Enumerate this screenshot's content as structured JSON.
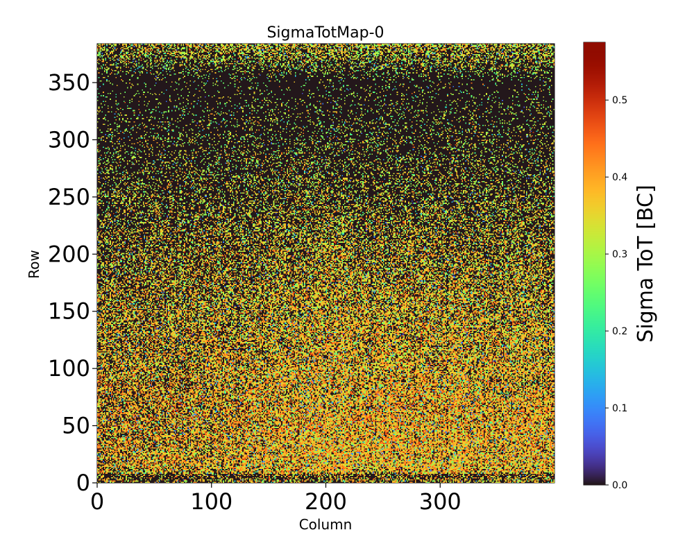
{
  "chart_data": {
    "type": "heatmap",
    "title": "SigmaTotMap-0",
    "xlabel": "Column",
    "ylabel": "Row",
    "xlim": [
      0,
      400
    ],
    "ylim": [
      0,
      384
    ],
    "x_ticks": [
      0,
      100,
      200,
      300
    ],
    "y_ticks": [
      0,
      50,
      100,
      150,
      200,
      250,
      300,
      350
    ],
    "grid_columns": 400,
    "grid_rows": 384,
    "colormap": "turbo",
    "colorbar": {
      "label": "Sigma ToT [BC]",
      "range": [
        0.0,
        0.575
      ],
      "ticks": [
        "0.0",
        "0.1",
        "0.2",
        "0.3",
        "0.4",
        "0.5"
      ],
      "tick_values": [
        0.0,
        0.1,
        0.2,
        0.3,
        0.4,
        0.5
      ]
    },
    "value_profile_by_row": [
      {
        "row": 0,
        "mean": 0.36,
        "empty_fraction": 0.55
      },
      {
        "row": 10,
        "mean": 0.38,
        "empty_fraction": 0.15
      },
      {
        "row": 50,
        "mean": 0.39,
        "empty_fraction": 0.18
      },
      {
        "row": 100,
        "mean": 0.38,
        "empty_fraction": 0.25
      },
      {
        "row": 150,
        "mean": 0.37,
        "empty_fraction": 0.35
      },
      {
        "row": 200,
        "mean": 0.36,
        "empty_fraction": 0.5
      },
      {
        "row": 250,
        "mean": 0.34,
        "empty_fraction": 0.68
      },
      {
        "row": 300,
        "mean": 0.32,
        "empty_fraction": 0.82
      },
      {
        "row": 350,
        "mean": 0.3,
        "empty_fraction": 0.93
      },
      {
        "row": 380,
        "mean": 0.35,
        "empty_fraction": 0.4
      }
    ],
    "value_profile_by_column": [
      {
        "column": 0,
        "occupancy_scale": 0.75
      },
      {
        "column": 100,
        "occupancy_scale": 0.85
      },
      {
        "column": 200,
        "occupancy_scale": 1.0
      },
      {
        "column": 300,
        "occupancy_scale": 1.0
      },
      {
        "column": 400,
        "occupancy_scale": 0.95
      }
    ]
  },
  "colors": {
    "background": "#ffffff",
    "empty_pixel": "#30123b",
    "axis": "#000000"
  }
}
